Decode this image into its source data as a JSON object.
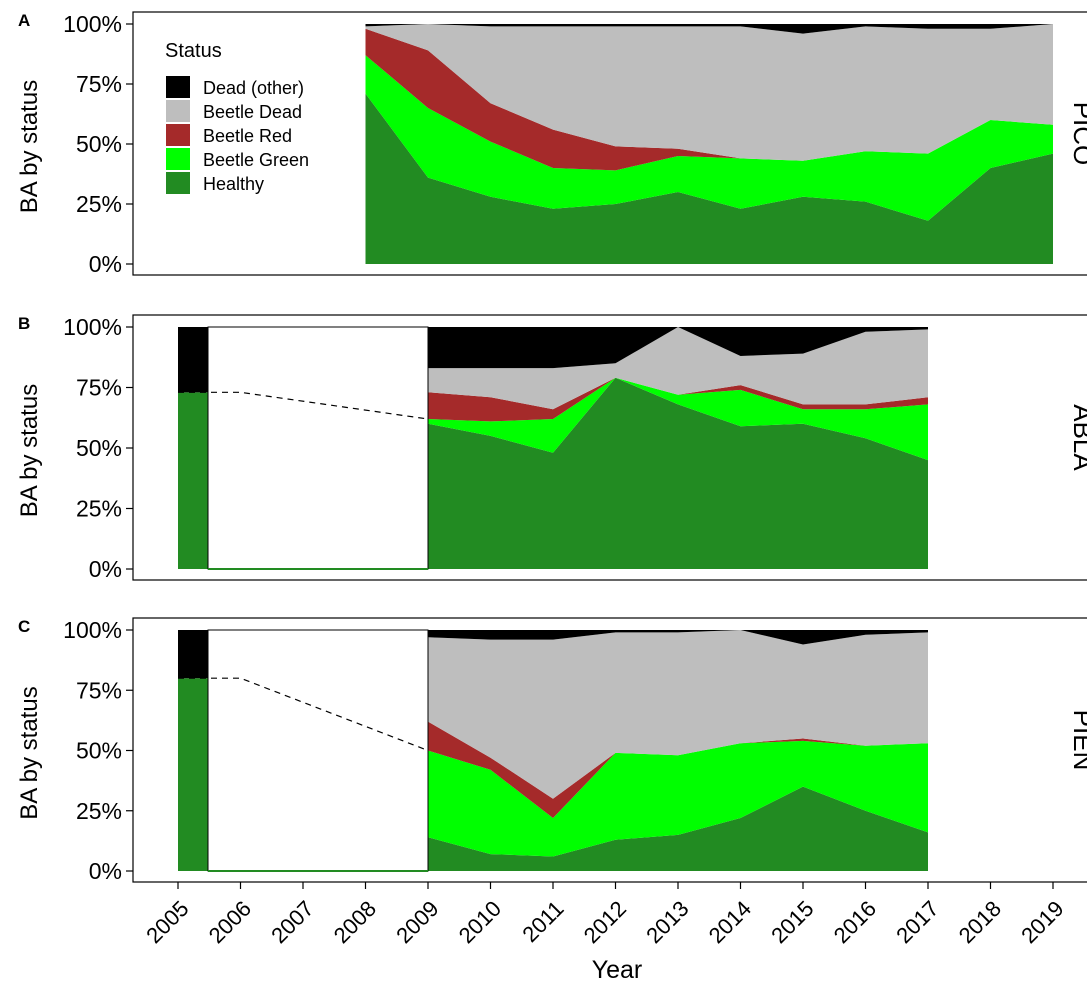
{
  "chart_data": {
    "type": "area",
    "stacked": true,
    "xlabel": "Year",
    "ylabel": "BA by status",
    "ylim": [
      0,
      100
    ],
    "yticks": [
      "0%",
      "25%",
      "50%",
      "75%",
      "100%"
    ],
    "x_ticks": [
      2005,
      2006,
      2007,
      2008,
      2009,
      2010,
      2011,
      2012,
      2013,
      2014,
      2015,
      2016,
      2017,
      2018,
      2019
    ],
    "legend": {
      "title": "Status",
      "position": "inside-top-left-of-panel-A",
      "items": [
        {
          "name": "Dead (other)",
          "color": "#000000"
        },
        {
          "name": "Beetle Dead",
          "color": "#bebebe"
        },
        {
          "name": "Beetle Red",
          "color": "#a52a2a"
        },
        {
          "name": "Beetle Green",
          "color": "#00ff00"
        },
        {
          "name": "Healthy",
          "color": "#228b22"
        }
      ]
    },
    "panels": [
      {
        "letter": "A",
        "species": "PICO",
        "x": [
          2009,
          2010,
          2011,
          2012,
          2013,
          2014,
          2015,
          2016,
          2017,
          2018,
          2019
        ],
        "series": [
          {
            "name": "Healthy",
            "values": [
              71,
              36,
              28,
              23,
              25,
              30,
              23,
              28,
              26,
              18,
              40,
              46
            ]
          },
          {
            "name": "Beetle Green",
            "values": [
              16,
              29,
              23,
              17,
              14,
              15,
              21,
              15,
              21,
              28,
              20,
              12
            ]
          },
          {
            "name": "Beetle Red",
            "values": [
              11,
              24,
              16,
              16,
              10,
              3,
              0,
              0,
              0,
              0,
              0,
              0
            ]
          },
          {
            "name": "Beetle Dead",
            "values": [
              1,
              11,
              32,
              43,
              50,
              51,
              55,
              53,
              52,
              52,
              38,
              42
            ]
          },
          {
            "name": "Dead (other)",
            "values": [
              1,
              0,
              1,
              1,
              1,
              1,
              1,
              4,
              1,
              2,
              2,
              0
            ]
          }
        ],
        "x_full": [
          2008,
          2009,
          2010,
          2011,
          2012,
          2013,
          2014,
          2015,
          2016,
          2017,
          2018,
          2019
        ]
      },
      {
        "letter": "B",
        "species": "ABLA",
        "x_full": [
          2009,
          2010,
          2011,
          2012,
          2013,
          2014,
          2015,
          2016,
          2017
        ],
        "baseline": {
          "x": 2005,
          "healthy": 73,
          "dead_other": 27
        },
        "dashed_line": {
          "x": [
            2005,
            2006,
            2009
          ],
          "y": [
            73,
            73,
            62
          ]
        },
        "series": [
          {
            "name": "Healthy",
            "values": [
              60,
              55,
              48,
              79,
              68,
              59,
              60,
              54,
              45
            ]
          },
          {
            "name": "Beetle Green",
            "values": [
              2,
              6,
              14,
              0,
              4,
              15,
              6,
              12,
              23
            ]
          },
          {
            "name": "Beetle Red",
            "values": [
              11,
              10,
              4,
              0,
              0,
              2,
              2,
              2,
              3
            ]
          },
          {
            "name": "Beetle Dead",
            "values": [
              10,
              12,
              17,
              6,
              28,
              12,
              21,
              30,
              28
            ]
          },
          {
            "name": "Dead (other)",
            "values": [
              17,
              17,
              17,
              15,
              0,
              12,
              11,
              2,
              1
            ]
          }
        ]
      },
      {
        "letter": "C",
        "species": "PIEN",
        "x_full": [
          2009,
          2010,
          2011,
          2012,
          2013,
          2014,
          2015,
          2016,
          2017
        ],
        "baseline": {
          "x": 2005,
          "healthy": 80,
          "dead_other": 20
        },
        "dashed_line": {
          "x": [
            2005,
            2006,
            2009
          ],
          "y": [
            80,
            80,
            50
          ]
        },
        "series": [
          {
            "name": "Healthy",
            "values": [
              14,
              7,
              6,
              13,
              15,
              22,
              35,
              25,
              16
            ]
          },
          {
            "name": "Beetle Green",
            "values": [
              36,
              35,
              16,
              36,
              33,
              31,
              19,
              27,
              37
            ]
          },
          {
            "name": "Beetle Red",
            "values": [
              12,
              5,
              8,
              0,
              0,
              0,
              1,
              0,
              0
            ]
          },
          {
            "name": "Beetle Dead",
            "values": [
              35,
              49,
              66,
              50,
              51,
              47,
              39,
              46,
              46
            ]
          },
          {
            "name": "Dead (other)",
            "values": [
              3,
              4,
              4,
              1,
              1,
              0,
              6,
              2,
              1
            ]
          }
        ]
      }
    ]
  }
}
